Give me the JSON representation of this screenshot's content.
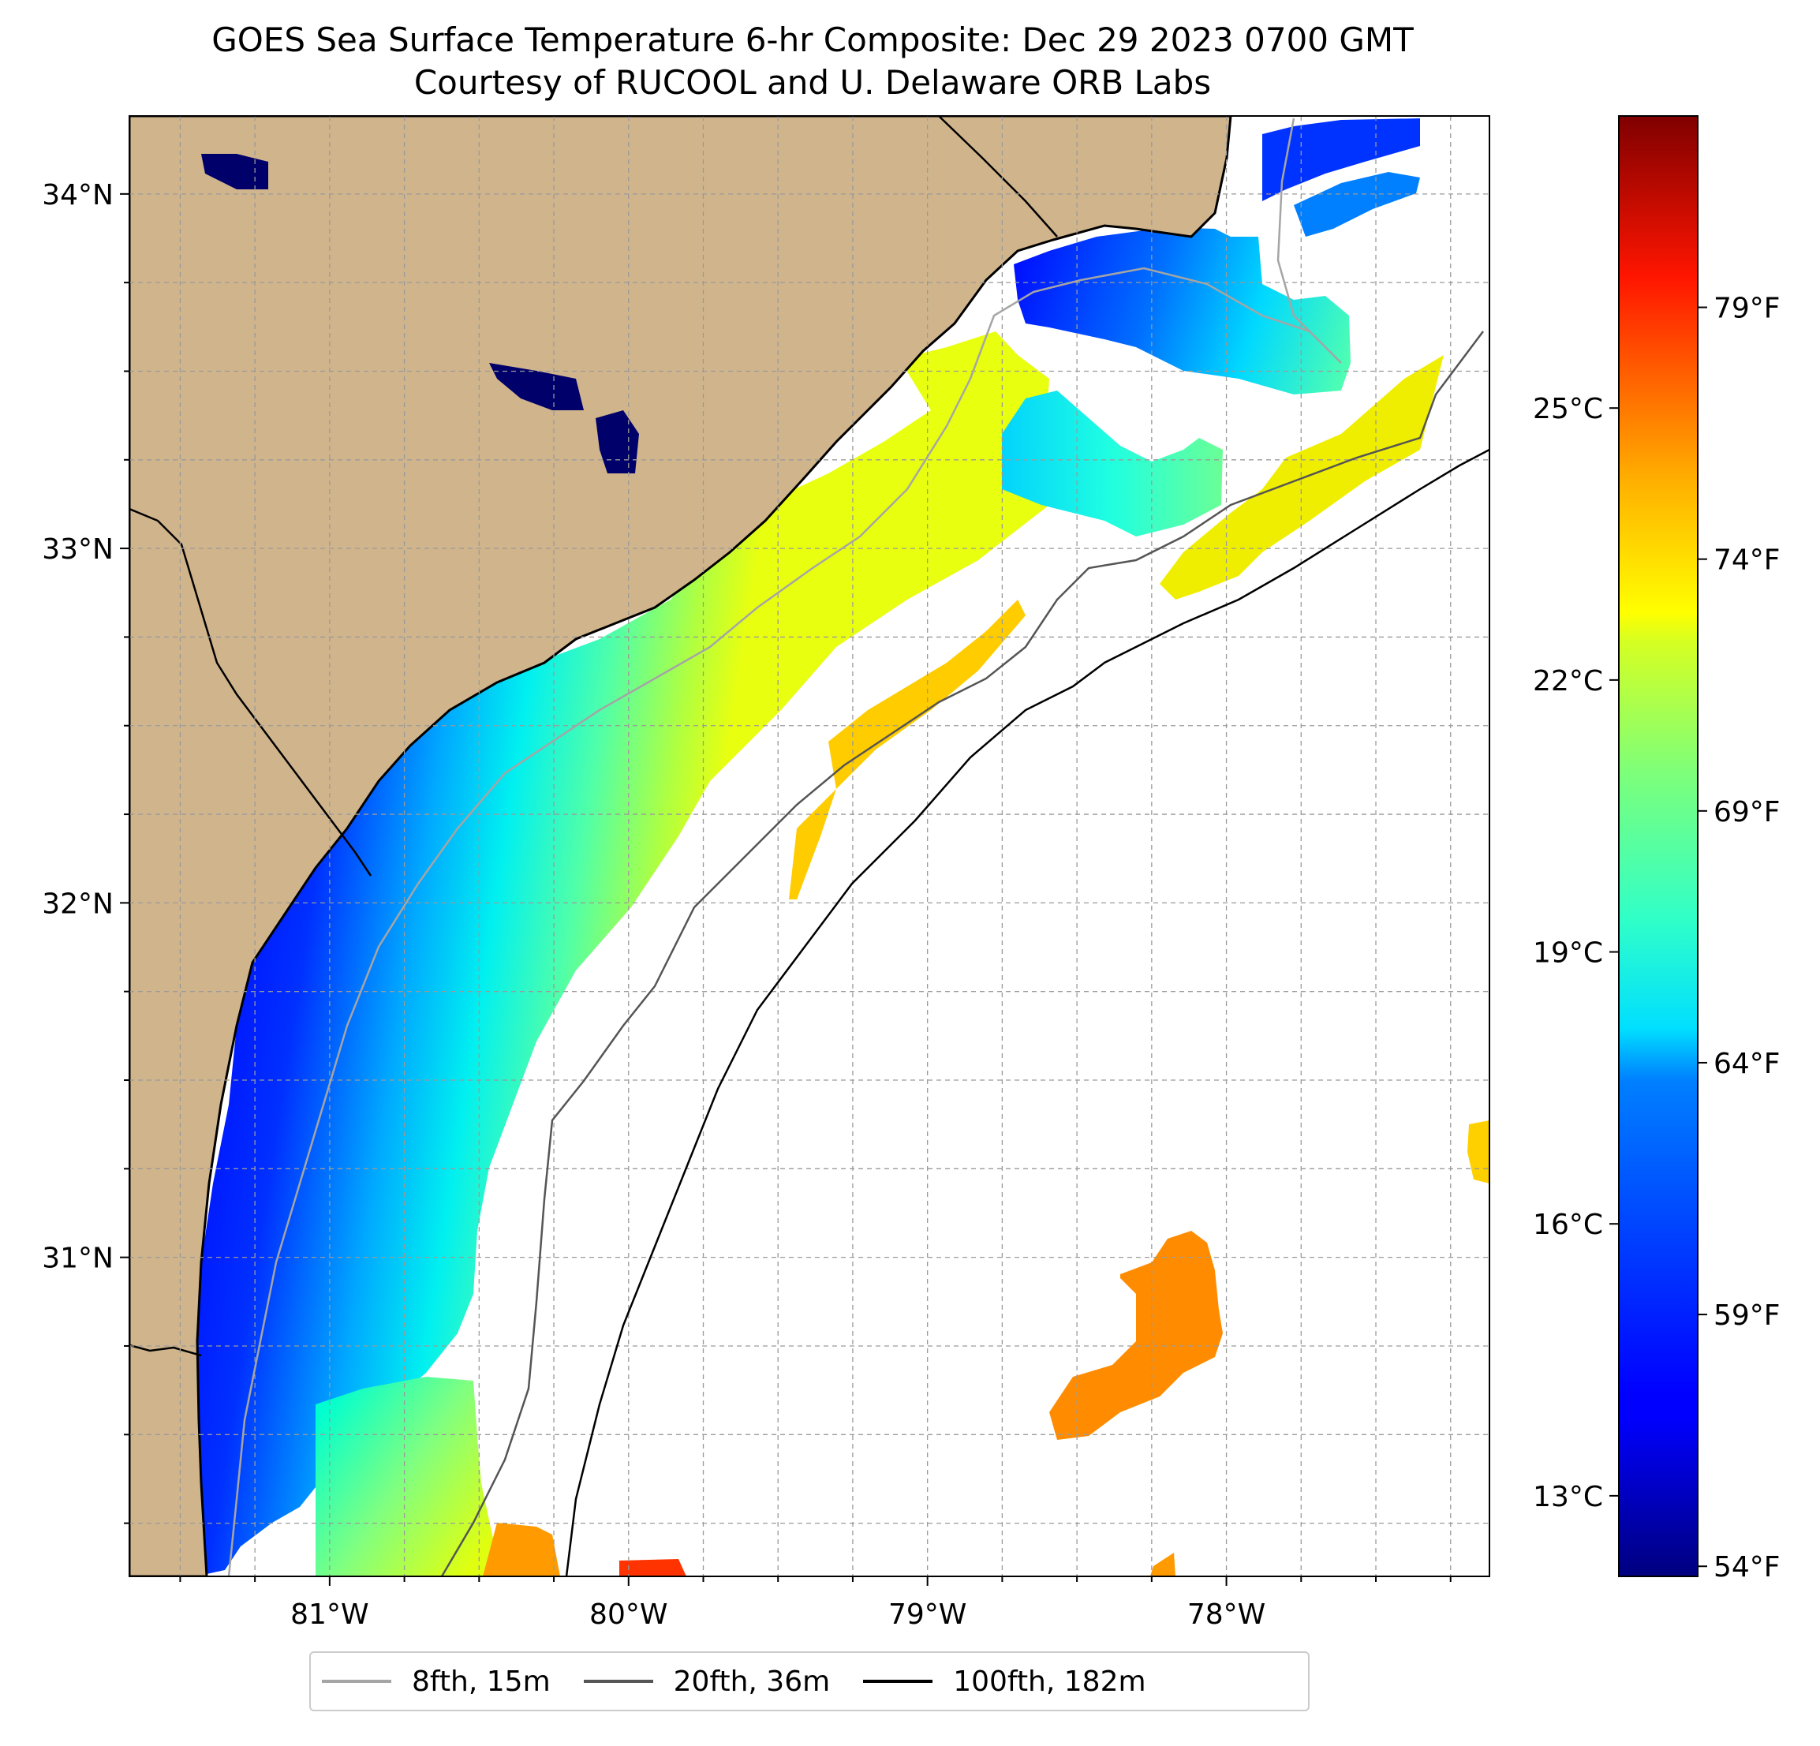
{
  "title": {
    "line1": "GOES Sea Surface Temperature 6-hr Composite: Dec 29 2023 0700 GMT",
    "line2": "Courtesy of RUCOOL and U. Delaware ORB Labs"
  },
  "map": {
    "lat_range": [
      30.1,
      34.22
    ],
    "lon_range": [
      -81.67,
      -77.12
    ],
    "lat_ticks": [
      {
        "value": 34,
        "label": "34°N"
      },
      {
        "value": 33,
        "label": "33°N"
      },
      {
        "value": 32,
        "label": "32°N"
      },
      {
        "value": 31,
        "label": "31°N"
      }
    ],
    "lon_ticks": [
      {
        "value": -81,
        "label": "81°W"
      },
      {
        "value": -80,
        "label": "80°W"
      },
      {
        "value": -79,
        "label": "79°W"
      },
      {
        "value": -78,
        "label": "78°W"
      }
    ],
    "grid_step_deg": 0.25,
    "land_color": "#d0b48c",
    "coastline_color": "#000000"
  },
  "colorbar": {
    "colormap": "jet",
    "range_f": [
      53.8,
      82.8
    ],
    "celsius_ticks": [
      {
        "value": 13,
        "label": "13°C"
      },
      {
        "value": 16,
        "label": "16°C"
      },
      {
        "value": 19,
        "label": "19°C"
      },
      {
        "value": 22,
        "label": "22°C"
      },
      {
        "value": 25,
        "label": "25°C"
      }
    ],
    "fahrenheit_ticks": [
      {
        "value": 54,
        "label": "54°F"
      },
      {
        "value": 59,
        "label": "59°F"
      },
      {
        "value": 64,
        "label": "64°F"
      },
      {
        "value": 69,
        "label": "69°F"
      },
      {
        "value": 74,
        "label": "74°F"
      },
      {
        "value": 79,
        "label": "79°F"
      }
    ]
  },
  "legend": {
    "items": [
      {
        "label": "8fth, 15m",
        "color": "#a5a5a5"
      },
      {
        "label": "20fth, 36m",
        "color": "#555555"
      },
      {
        "label": "100fth, 182m",
        "color": "#000000"
      }
    ]
  }
}
